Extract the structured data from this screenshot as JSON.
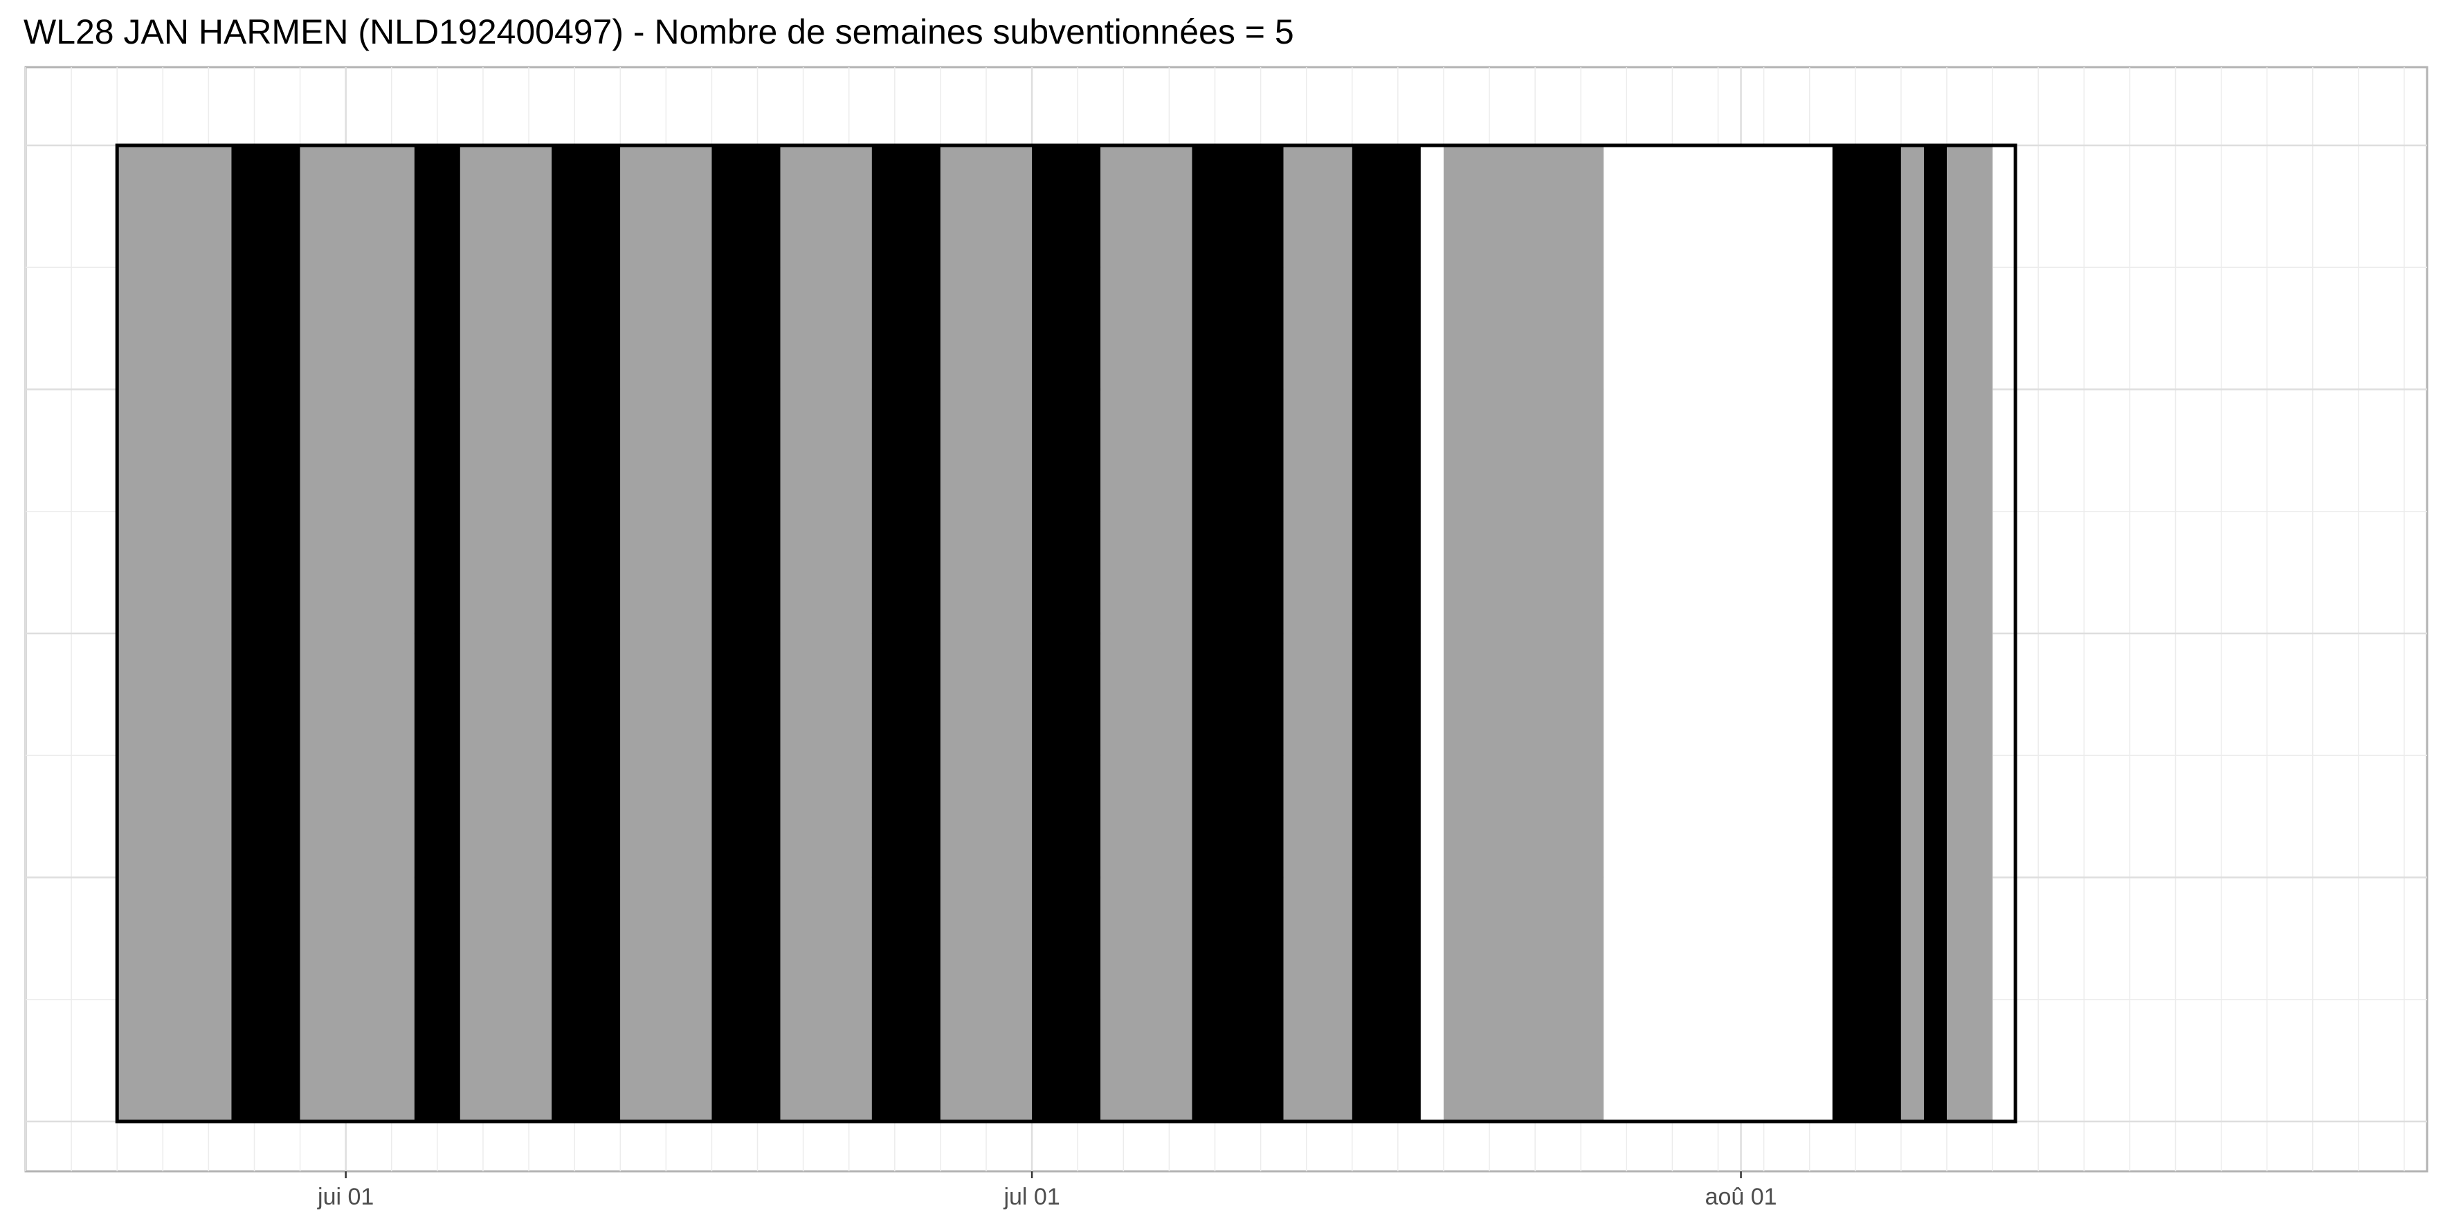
{
  "chart_data": {
    "type": "bar",
    "title": "WL28 JAN HARMEN (NLD192400497) - Nombre de semaines subventionnées = 5",
    "xlabel": "",
    "ylabel": "",
    "x_axis": {
      "kind": "date",
      "range": [
        "2024-05-18",
        "2024-08-31"
      ],
      "ticks": [
        {
          "date": "2024-06-01",
          "label": "jui 01"
        },
        {
          "date": "2024-07-01",
          "label": "jul 01"
        },
        {
          "date": "2024-08-01",
          "label": "aoû 01"
        }
      ]
    },
    "grid": true,
    "legend": "none",
    "colors": {
      "gray": "#a3a3a3",
      "black": "#000000",
      "white": "#ffffff",
      "frame": "#000000"
    },
    "outline": {
      "start": "2024-05-22",
      "end": "2024-08-13"
    },
    "segments": [
      {
        "start": "2024-05-22",
        "end": "2024-05-27",
        "fill": "gray"
      },
      {
        "start": "2024-05-27",
        "end": "2024-05-30",
        "fill": "black"
      },
      {
        "start": "2024-05-30",
        "end": "2024-06-04",
        "fill": "gray"
      },
      {
        "start": "2024-06-04",
        "end": "2024-06-06",
        "fill": "black"
      },
      {
        "start": "2024-06-06",
        "end": "2024-06-10",
        "fill": "gray"
      },
      {
        "start": "2024-06-10",
        "end": "2024-06-13",
        "fill": "black"
      },
      {
        "start": "2024-06-13",
        "end": "2024-06-17",
        "fill": "gray"
      },
      {
        "start": "2024-06-17",
        "end": "2024-06-20",
        "fill": "black"
      },
      {
        "start": "2024-06-20",
        "end": "2024-06-24",
        "fill": "gray"
      },
      {
        "start": "2024-06-24",
        "end": "2024-06-27",
        "fill": "black"
      },
      {
        "start": "2024-06-27",
        "end": "2024-07-01",
        "fill": "gray"
      },
      {
        "start": "2024-07-01",
        "end": "2024-07-04",
        "fill": "black"
      },
      {
        "start": "2024-07-04",
        "end": "2024-07-08",
        "fill": "gray"
      },
      {
        "start": "2024-07-08",
        "end": "2024-07-12",
        "fill": "black"
      },
      {
        "start": "2024-07-12",
        "end": "2024-07-15",
        "fill": "gray"
      },
      {
        "start": "2024-07-15",
        "end": "2024-07-18",
        "fill": "black"
      },
      {
        "start": "2024-07-18",
        "end": "2024-07-19",
        "fill": "white"
      },
      {
        "start": "2024-07-19",
        "end": "2024-07-26",
        "fill": "gray"
      },
      {
        "start": "2024-07-26",
        "end": "2024-08-05",
        "fill": "white"
      },
      {
        "start": "2024-08-05",
        "end": "2024-08-08",
        "fill": "black"
      },
      {
        "start": "2024-08-08",
        "end": "2024-08-09",
        "fill": "gray"
      },
      {
        "start": "2024-08-09",
        "end": "2024-08-10",
        "fill": "black"
      },
      {
        "start": "2024-08-10",
        "end": "2024-08-12",
        "fill": "gray"
      }
    ]
  }
}
